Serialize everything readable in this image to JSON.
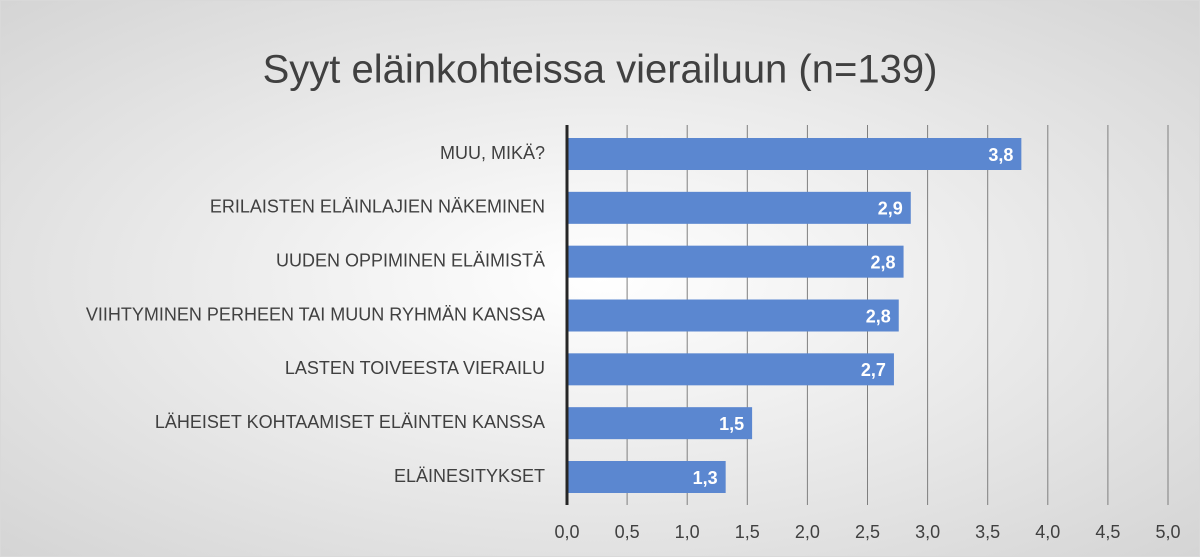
{
  "chart_data": {
    "type": "hbar",
    "title": "Syyt eläinkohteissa vierailuun (n=139)",
    "categories": [
      "MUU, MIKÄ?",
      "ERILAISTEN ELÄINLAJIEN NÄKEMINEN",
      "UUDEN OPPIMINEN ELÄIMISTÄ",
      "VIIHTYMINEN PERHEEN TAI MUUN RYHMÄN KANSSA",
      "LASTEN TOIVEESTA VIERAILU",
      "LÄHEISET KOHTAAMISET ELÄINTEN KANSSA",
      "ELÄINESITYKSET"
    ],
    "values": [
      3.78,
      2.86,
      2.8,
      2.76,
      2.72,
      1.54,
      1.32
    ],
    "value_labels": [
      "3,8",
      "2,9",
      "2,8",
      "2,8",
      "2,7",
      "1,5",
      "1,3"
    ],
    "color": "#5b87d0",
    "xlim": [
      0,
      5
    ],
    "xticks": [
      {
        "value": 0,
        "label": "0,0"
      },
      {
        "value": 0.5,
        "label": "0,5"
      },
      {
        "value": 1,
        "label": "1,0"
      },
      {
        "value": 1.5,
        "label": "1,5"
      },
      {
        "value": 2,
        "label": "2,0"
      },
      {
        "value": 2.5,
        "label": "2,5"
      },
      {
        "value": 3,
        "label": "3,0"
      },
      {
        "value": 3.5,
        "label": "3,5"
      },
      {
        "value": 4,
        "label": "4,0"
      },
      {
        "value": 4.5,
        "label": "4,5"
      },
      {
        "value": 5,
        "label": "5,0"
      }
    ],
    "grid": true
  }
}
